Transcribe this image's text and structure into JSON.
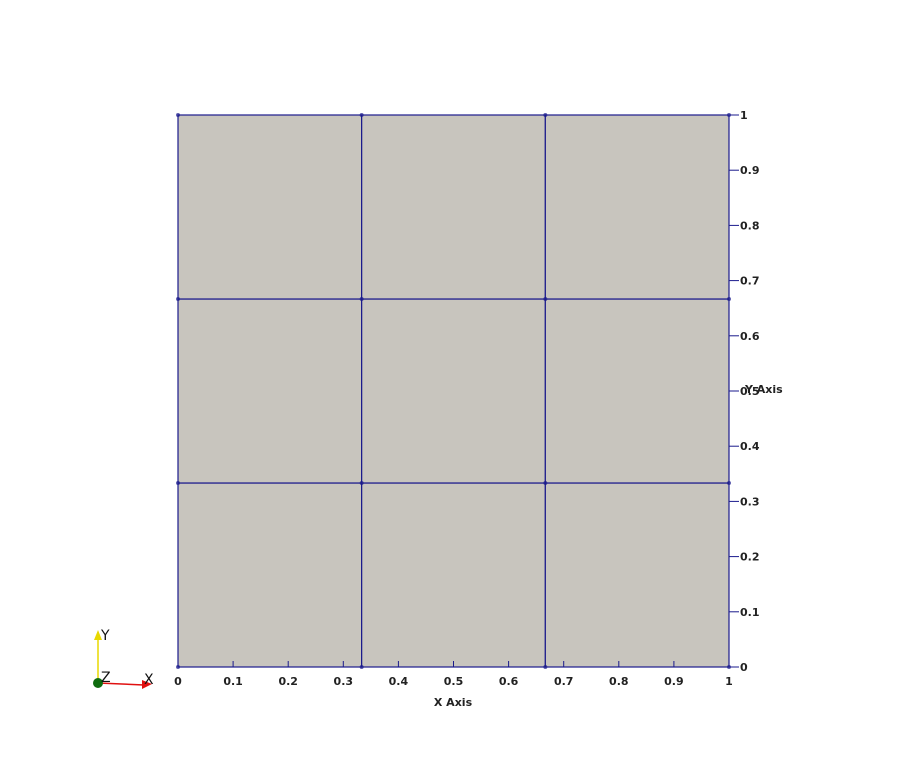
{
  "mesh": {
    "cells_x": 3,
    "cells_y": 3,
    "x_range": [
      0,
      1
    ],
    "y_range": [
      0,
      1
    ],
    "fill_color": "#c8c5be",
    "edge_color": "#1a1a8c"
  },
  "axes": {
    "x_label": "X Axis",
    "y_label": "Y Axis",
    "x_ticks": [
      "0",
      "0.1",
      "0.2",
      "0.3",
      "0.4",
      "0.5",
      "0.6",
      "0.7",
      "0.8",
      "0.9",
      "1"
    ],
    "y_ticks": [
      "0",
      "0.1",
      "0.2",
      "0.3",
      "0.4",
      "0.5",
      "0.6",
      "0.7",
      "0.8",
      "0.9",
      "1"
    ],
    "axis_color": "#1a1a8c"
  },
  "orientation_widget": {
    "x_label": "X",
    "y_label": "Y",
    "z_label": "Z",
    "x_color": "#e01010",
    "y_color": "#e8d800",
    "z_color": "#0e6b0e"
  }
}
